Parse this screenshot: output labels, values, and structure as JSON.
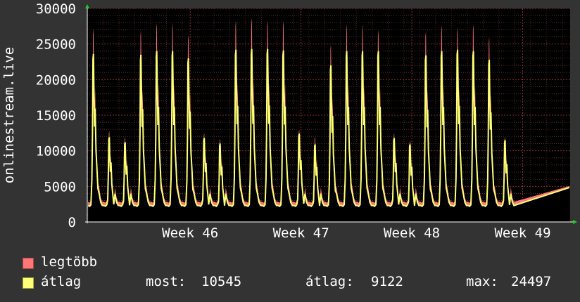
{
  "chart_data": {
    "type": "area",
    "ylabel": "onlinestream.live",
    "ylim": [
      0,
      30000
    ],
    "y_ticks": [
      0,
      5000,
      10000,
      15000,
      20000,
      25000,
      30000
    ],
    "y_tick_labels": [
      "0",
      "5000",
      "10000",
      "15000",
      "20000",
      "25000",
      "30000"
    ],
    "x_tick_labels": [
      "Week 46",
      "Week 47",
      "Week 48",
      "Week 49"
    ],
    "x_tick_days": [
      6.5,
      13.5,
      20.5,
      27.5
    ],
    "x_range_days": [
      0,
      30.5
    ],
    "grid": true,
    "daily_peaks_max": [
      27200,
      12800,
      12000,
      27000,
      28000,
      28000,
      26300,
      12500,
      11700,
      28300,
      28700,
      28300,
      28300,
      13000,
      12000,
      25000,
      27800,
      27800,
      27000,
      12500,
      11500,
      26800,
      27700,
      27300,
      27800,
      26000,
      12000
    ],
    "daily_peaks_avg": [
      23600,
      11900,
      11200,
      23500,
      24000,
      24000,
      23000,
      11800,
      11000,
      24200,
      24300,
      24300,
      24100,
      12400,
      10900,
      22000,
      24000,
      24000,
      24000,
      11800,
      10900,
      23400,
      24000,
      24200,
      24000,
      22800,
      11500
    ],
    "series": [
      {
        "name": "legtöbb",
        "color": "#ff7777"
      },
      {
        "name": "átlag",
        "color": "#ffff77"
      }
    ]
  },
  "stats": {
    "most_label": "most:",
    "most_value": "10545",
    "atlag_label": "átlag:",
    "atlag_value": "9122",
    "max_label": "max:",
    "max_value": "24497"
  }
}
